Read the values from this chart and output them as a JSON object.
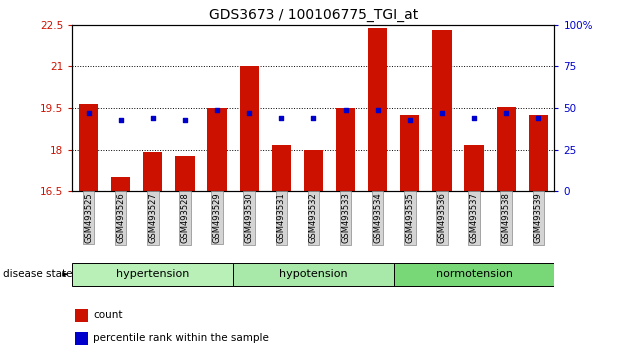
{
  "title": "GDS3673 / 100106775_TGI_at",
  "samples": [
    "GSM493525",
    "GSM493526",
    "GSM493527",
    "GSM493528",
    "GSM493529",
    "GSM493530",
    "GSM493531",
    "GSM493532",
    "GSM493533",
    "GSM493534",
    "GSM493535",
    "GSM493536",
    "GSM493537",
    "GSM493538",
    "GSM493539"
  ],
  "bar_values": [
    19.65,
    17.0,
    17.9,
    17.75,
    19.5,
    21.0,
    18.15,
    18.0,
    19.5,
    22.4,
    19.25,
    22.3,
    18.15,
    19.55,
    19.25
  ],
  "percentile_values": [
    47,
    43,
    44,
    43,
    49,
    47,
    44,
    44,
    49,
    49,
    43,
    47,
    44,
    47,
    44
  ],
  "ylim_left": [
    16.5,
    22.5
  ],
  "ylim_right": [
    0,
    100
  ],
  "yticks_left": [
    16.5,
    18.0,
    19.5,
    21.0,
    22.5
  ],
  "yticks_right": [
    0,
    25,
    50,
    75,
    100
  ],
  "ytick_labels_left": [
    "16.5",
    "18",
    "19.5",
    "21",
    "22.5"
  ],
  "ytick_labels_right": [
    "0",
    "25",
    "50",
    "75",
    "100%"
  ],
  "group_labels": [
    "hypertension",
    "hypotension",
    "normotension"
  ],
  "group_starts": [
    0,
    5,
    10
  ],
  "group_ends": [
    5,
    10,
    15
  ],
  "group_colors": [
    "#b8f0b8",
    "#a8e8a8",
    "#78d878"
  ],
  "bar_color": "#cc1100",
  "percentile_color": "#0000cc",
  "baseline": 16.5,
  "bar_width": 0.6,
  "background_color": "#ffffff",
  "grid_color": "#000000",
  "disease_state_label": "disease state",
  "legend_count_label": "count",
  "legend_percentile_label": "percentile rank within the sample"
}
